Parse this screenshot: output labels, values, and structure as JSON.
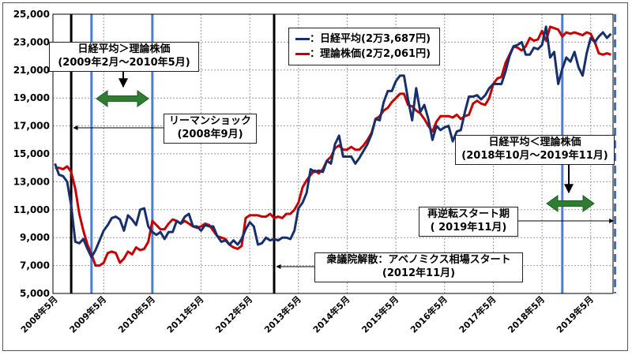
{
  "chart_data": {
    "type": "line",
    "ylim": [
      5000,
      25000
    ],
    "yticks": [
      "5,000",
      "7,000",
      "9,000",
      "11,000",
      "13,000",
      "15,000",
      "17,000",
      "19,000",
      "21,000",
      "23,000",
      "25,000"
    ],
    "xticks": [
      "2008年5月",
      "2009年5月",
      "2010年5月",
      "2011年5月",
      "2012年5月",
      "2013年5月",
      "2014年5月",
      "2015年5月",
      "2016年5月",
      "2017年5月",
      "2018年5月",
      "2019年5月"
    ],
    "x_start": "2008-05",
    "x_end": "2019-11",
    "series": [
      {
        "name": "日経平均(2万3,687円)",
        "color": "#17306b",
        "values": [
          14300,
          13500,
          13400,
          13000,
          11300,
          8700,
          8600,
          8900,
          8200,
          7600,
          8100,
          8800,
          9500,
          9900,
          10400,
          10500,
          10300,
          9500,
          10600,
          10300,
          9900,
          11000,
          11100,
          9800,
          9400,
          9200,
          9400,
          8900,
          9400,
          9400,
          10200,
          10000,
          10500,
          10700,
          9800,
          9800,
          9500,
          9900,
          9800,
          9800,
          9100,
          8700,
          8800,
          8500,
          8800,
          8500,
          8900,
          9600,
          10100,
          9800,
          8500,
          8600,
          9000,
          8800,
          8900,
          8800,
          9000,
          9000,
          8900,
          9500,
          11100,
          11500,
          12200,
          13900,
          13700,
          13800,
          13700,
          14500,
          14300,
          15700,
          16300,
          14800,
          14800,
          14800,
          14300,
          14700,
          15200,
          15700,
          16400,
          17500,
          17400,
          18700,
          19500,
          19500,
          20200,
          20600,
          20600,
          18900,
          17400,
          19700,
          18000,
          18500,
          17500,
          16000,
          17000,
          16700,
          16900,
          17000,
          15900,
          16600,
          16700,
          18000,
          19100,
          19100,
          19200,
          18900,
          19200,
          19700,
          20000,
          20000,
          20000,
          20900,
          22000,
          22700,
          22800,
          23000,
          22100,
          22100,
          22600,
          22500,
          22800,
          24100,
          21900,
          22300,
          20000,
          21100,
          21900,
          21600,
          22300,
          21200,
          20600,
          22200,
          23300,
          23000,
          23400,
          23700,
          23300,
          23600
        ]
      },
      {
        "name": "理論株価(2万2,061円)",
        "color": "#c80000",
        "values": [
          14000,
          14000,
          13900,
          14100,
          13700,
          12500,
          10700,
          9500,
          8500,
          7800,
          7000,
          7000,
          7200,
          7900,
          8000,
          7900,
          7200,
          7500,
          8000,
          7800,
          8300,
          8100,
          8200,
          8700,
          10200,
          9900,
          9600,
          9600,
          10000,
          10300,
          10200,
          10000,
          10200,
          10000,
          9800,
          9700,
          9800,
          10000,
          9900,
          9500,
          9100,
          9000,
          8900,
          8500,
          8300,
          8200,
          8400,
          10400,
          10600,
          10600,
          10600,
          10500,
          10500,
          10700,
          10400,
          10500,
          10400,
          10700,
          10700,
          11000,
          11500,
          12600,
          13100,
          13500,
          13800,
          13600,
          13900,
          14500,
          14800,
          15400,
          15600,
          15300,
          15300,
          15500,
          15300,
          15300,
          15600,
          16000,
          16500,
          17500,
          17700,
          18100,
          18300,
          18700,
          19000,
          19300,
          19300,
          18500,
          18400,
          18100,
          17900,
          17500,
          17000,
          16600,
          17300,
          17700,
          17700,
          17700,
          17600,
          17800,
          17500,
          17700,
          17800,
          18600,
          18800,
          18600,
          18500,
          19000,
          20000,
          20400,
          20500,
          21500,
          22100,
          22700,
          22600,
          22400,
          22700,
          23300,
          23100,
          23200,
          23800,
          23100,
          24100,
          24000,
          23900,
          23400,
          23700,
          23600,
          23700,
          23600,
          23500,
          23700,
          23600,
          23000,
          22200,
          22100,
          22200,
          22100
        ]
      }
    ],
    "markers": {
      "black_solid": [
        "2008-09",
        "2012-11"
      ],
      "blue_solid": [
        "2009-02",
        "2010-05",
        "2018-10"
      ],
      "blue_dashed": [
        "2019-11"
      ]
    }
  },
  "legend": {
    "nikkei": "：日経平均(2万3,687円)",
    "theory": "：理論株価(2万2,061円)"
  },
  "annotations": {
    "period1": {
      "line1": "日経平均＞理論株価",
      "line2": "(2009年2月～2010年5月)"
    },
    "lehman": {
      "line1": "リーマンショック",
      "line2": "(2008年9月)"
    },
    "period2": {
      "line1": "日経平均＜理論株価",
      "line2": "(2018年10月～2019年11月)"
    },
    "restart": {
      "line1": "再逆転スタート期",
      "line2": "( 2019年11月)"
    },
    "abe": {
      "line1": "衆議院解散：アベノミクス相場スタート",
      "line2": "(2012年11月)"
    }
  }
}
